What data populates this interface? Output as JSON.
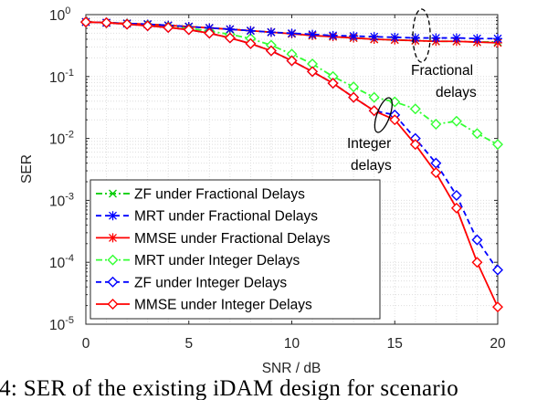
{
  "chart_data": {
    "type": "line",
    "xlabel": "SNR / dB",
    "ylabel": "SER",
    "xlim": [
      0,
      20
    ],
    "ylim": [
      1e-05,
      1
    ],
    "yscale": "log",
    "grid": true,
    "xticks": [
      0,
      5,
      10,
      15,
      20
    ],
    "xtick_labels": [
      "0",
      "5",
      "10",
      "15",
      "20"
    ],
    "yticks": [
      1,
      0.1,
      0.01,
      0.001,
      0.0001,
      1e-05
    ],
    "ytick_exponents": [
      "0",
      "-1",
      "-2",
      "-3",
      "-4",
      "-5"
    ],
    "ytick_base": "10",
    "legend_position": "lower-left",
    "x": [
      0,
      1,
      2,
      3,
      4,
      5,
      6,
      7,
      8,
      9,
      10,
      11,
      12,
      13,
      14,
      15,
      16,
      17,
      18,
      19,
      20
    ],
    "series": [
      {
        "name": "ZF under Fractional Delays",
        "color": "#00cc00",
        "dash": "dashdot",
        "marker": "x",
        "values": [
          0.76,
          0.74,
          0.72,
          0.7,
          0.67,
          0.64,
          0.61,
          0.58,
          0.55,
          0.52,
          0.49,
          0.46,
          0.44,
          0.42,
          0.4,
          0.39,
          0.38,
          0.37,
          0.37,
          0.36,
          0.36
        ]
      },
      {
        "name": "MRT under Fractional Delays",
        "color": "#0000ff",
        "dash": "dashed",
        "marker": "asterisk",
        "values": [
          0.76,
          0.74,
          0.72,
          0.7,
          0.67,
          0.64,
          0.61,
          0.58,
          0.55,
          0.52,
          0.5,
          0.48,
          0.46,
          0.45,
          0.44,
          0.43,
          0.42,
          0.42,
          0.42,
          0.41,
          0.41
        ]
      },
      {
        "name": "MMSE under Fractional Delays",
        "color": "#ff0000",
        "dash": "solid",
        "marker": "asterisk",
        "values": [
          0.76,
          0.74,
          0.72,
          0.7,
          0.67,
          0.64,
          0.61,
          0.58,
          0.55,
          0.52,
          0.49,
          0.46,
          0.44,
          0.42,
          0.4,
          0.39,
          0.38,
          0.37,
          0.37,
          0.36,
          0.35
        ]
      },
      {
        "name": "MRT under Integer Delays",
        "color": "#33ff33",
        "dash": "dashdot",
        "marker": "diamond",
        "values": [
          0.76,
          0.74,
          0.71,
          0.68,
          0.64,
          0.6,
          0.54,
          0.48,
          0.41,
          0.32,
          0.23,
          0.16,
          0.1,
          0.068,
          0.046,
          0.039,
          0.03,
          0.017,
          0.019,
          0.012,
          0.008
        ]
      },
      {
        "name": "ZF under Integer Delays",
        "color": "#0000ff",
        "dash": "dashed",
        "marker": "diamond",
        "values": [
          0.76,
          0.74,
          0.7,
          0.66,
          0.62,
          0.57,
          0.5,
          0.42,
          0.34,
          0.26,
          0.18,
          0.12,
          0.078,
          0.046,
          0.028,
          0.024,
          0.01,
          0.004,
          0.0012,
          0.00023,
          7.5e-05
        ]
      },
      {
        "name": "MMSE under Integer Delays",
        "color": "#ff0000",
        "dash": "solid",
        "marker": "diamond",
        "values": [
          0.76,
          0.74,
          0.7,
          0.66,
          0.62,
          0.57,
          0.5,
          0.42,
          0.34,
          0.26,
          0.18,
          0.12,
          0.078,
          0.046,
          0.028,
          0.02,
          0.008,
          0.0028,
          0.00075,
          0.0001,
          1.9e-05
        ]
      }
    ],
    "annotations": [
      {
        "id": "fractional",
        "lines": [
          "Fractional",
          "delays"
        ]
      },
      {
        "id": "integer",
        "lines": [
          "Integer",
          "delays"
        ]
      }
    ]
  },
  "caption": ". 4: SER of the existing iDAM design for scenario"
}
